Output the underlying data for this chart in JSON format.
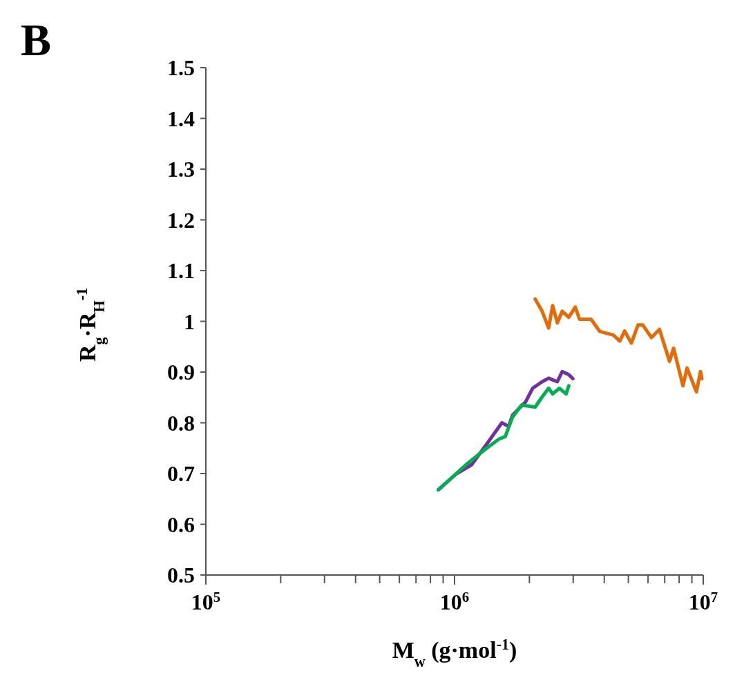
{
  "chart_data": {
    "type": "line",
    "title": "B",
    "xlabel": "M$_{w}$ (g·mol$^{-1}$)",
    "ylabel": "R$_{g}$·R$_{H}$$^{-1}$",
    "log": "x",
    "grid": false,
    "marker": "none",
    "line_style": "solid",
    "xlim": [
      100000,
      10000000
    ],
    "ylim": [
      0.5,
      1.5
    ],
    "xticks": [
      {
        "value": 100000,
        "label": "10$^{5}$"
      },
      {
        "value": 200000,
        "label": null
      },
      {
        "value": 300000,
        "label": null
      },
      {
        "value": 400000,
        "label": null
      },
      {
        "value": 500000,
        "label": null
      },
      {
        "value": 600000,
        "label": null
      },
      {
        "value": 700000,
        "label": null
      },
      {
        "value": 800000,
        "label": null
      },
      {
        "value": 900000,
        "label": null
      },
      {
        "value": 1000000,
        "label": "10$^{6}$"
      },
      {
        "value": 2000000,
        "label": null
      },
      {
        "value": 3000000,
        "label": null
      },
      {
        "value": 4000000,
        "label": null
      },
      {
        "value": 5000000,
        "label": null
      },
      {
        "value": 6000000,
        "label": null
      },
      {
        "value": 7000000,
        "label": null
      },
      {
        "value": 8000000,
        "label": null
      },
      {
        "value": 9000000,
        "label": null
      },
      {
        "value": 10000000,
        "label": "10$^{7}$"
      }
    ],
    "yticks": [
      0.5,
      0.6,
      0.7,
      0.8,
      0.9,
      1,
      1.1,
      1.2,
      1.3,
      1.4,
      1.5
    ],
    "series": [
      {
        "color": "#7030a0",
        "x": [
          861000,
          1020000,
          1170000,
          1360000,
          1550000,
          1650000,
          1710000,
          1930000,
          2060000,
          2250000,
          2390000,
          2590000,
          2710000,
          2880000,
          2990000
        ],
        "values": [
          0.668,
          0.7,
          0.717,
          0.761,
          0.8,
          0.793,
          0.815,
          0.841,
          0.868,
          0.881,
          0.888,
          0.881,
          0.901,
          0.895,
          0.887
        ]
      },
      {
        "color": "#00b050",
        "x": [
          861000,
          1110000,
          1330000,
          1510000,
          1600000,
          1710000,
          1860000,
          1980000,
          2110000,
          2250000,
          2390000,
          2480000,
          2640000,
          2810000,
          2880000
        ],
        "values": [
          0.668,
          0.717,
          0.748,
          0.768,
          0.773,
          0.811,
          0.835,
          0.833,
          0.831,
          0.851,
          0.868,
          0.857,
          0.868,
          0.857,
          0.873
        ]
      },
      {
        "color": "#e36c09",
        "x": [
          2110000,
          2250000,
          2390000,
          2480000,
          2590000,
          2710000,
          2880000,
          3060000,
          3180000,
          3540000,
          3840000,
          4350000,
          4620000,
          4830000,
          5140000,
          5470000,
          5710000,
          6190000,
          6670000,
          7320000,
          7600000,
          8290000,
          8610000,
          9390000,
          9750000,
          9880000
        ],
        "values": [
          1.044,
          1.02,
          0.987,
          1.031,
          0.997,
          1.02,
          1.008,
          1.028,
          1.004,
          1.004,
          0.98,
          0.973,
          0.961,
          0.981,
          0.957,
          0.993,
          0.993,
          0.968,
          0.984,
          0.921,
          0.947,
          0.873,
          0.908,
          0.861,
          0.901,
          0.887
        ]
      }
    ]
  }
}
